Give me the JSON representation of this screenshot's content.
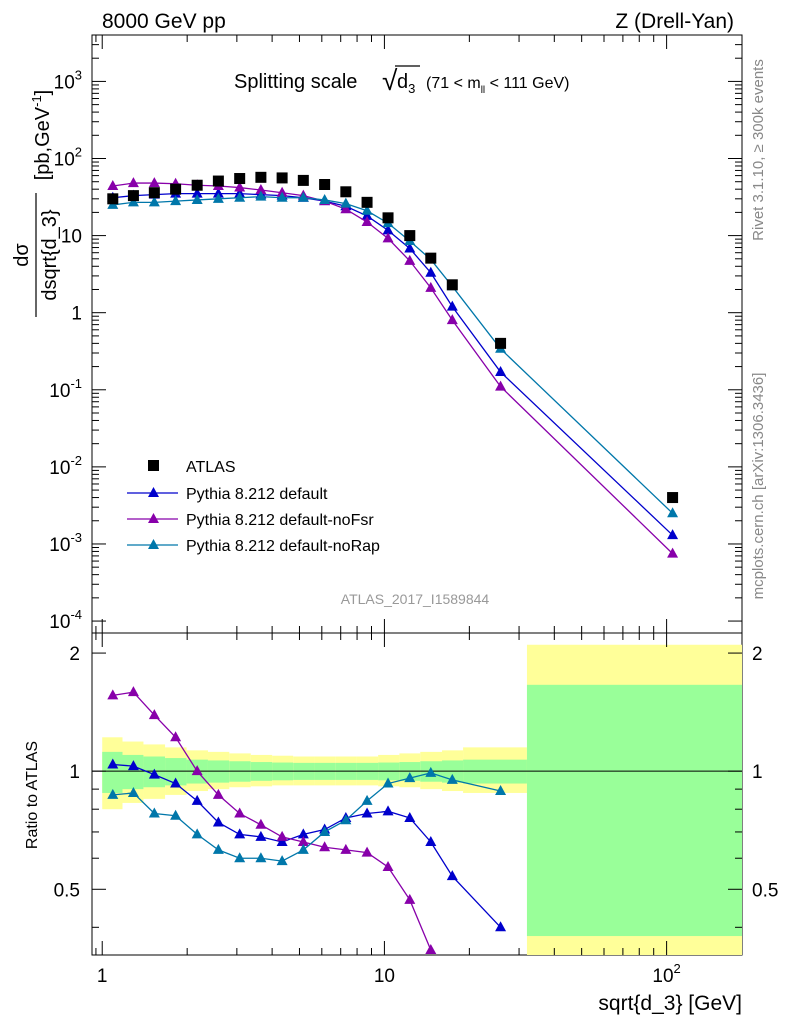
{
  "header": {
    "left": "8000 GeV pp",
    "right": "Z (Drell-Yan)"
  },
  "title": {
    "main": "Splitting scale",
    "sqrt_symbol": "√",
    "radicand": "d",
    "radicand_sub": "3",
    "cut": "(71 < m",
    "cut_sub": "ll",
    "cut_end": " < 111 GeV)"
  },
  "ylabel_top": {
    "numerator": "dσ",
    "denominator": "dsqrt{d_3}",
    "units": "[pb,GeV",
    "units_sup": "-1",
    "units_end": "]"
  },
  "ylabel_bottom": "Ratio to ATLAS",
  "xlabel": "sqrt{d_3} [GeV]",
  "analysis_tag": "ATLAS_2017_I1589844",
  "side_text_top": "Rivet 3.1.10, ≥ 300k events",
  "side_text_bottom": "mcplots.cern.ch [arXiv:1306.3436]",
  "chart_data": {
    "type": "line",
    "x_scale": "log",
    "y_scale_top": "log",
    "xlim": [
      0.92,
      185
    ],
    "ylim_top": [
      7e-05,
      4000
    ],
    "ylim_bottom": [
      0.34,
      2.25
    ],
    "x_ticks": [
      {
        "value": 1,
        "label": "1"
      },
      {
        "value": 10,
        "label": "10"
      },
      {
        "value": 100,
        "label": "10",
        "sup": "2"
      }
    ],
    "y_ticks_top": [
      {
        "value": 1000,
        "label": "10",
        "sup": "3"
      },
      {
        "value": 100,
        "label": "10",
        "sup": "2"
      },
      {
        "value": 10,
        "label": "10",
        "sup": ""
      },
      {
        "value": 1,
        "label": "1",
        "sup": ""
      },
      {
        "value": 0.1,
        "label": "10",
        "sup": "-1"
      },
      {
        "value": 0.01,
        "label": "10",
        "sup": "-2"
      },
      {
        "value": 0.001,
        "label": "10",
        "sup": "-3"
      },
      {
        "value": 0.0001,
        "label": "10",
        "sup": "-4"
      }
    ],
    "y_ticks_bottom": [
      {
        "value": 0.5,
        "label": "0.5"
      },
      {
        "value": 1,
        "label": "1"
      },
      {
        "value": 2,
        "label": "2"
      }
    ],
    "data": {
      "name": "ATLAS",
      "x": [
        1.09,
        1.29,
        1.53,
        1.82,
        2.17,
        2.58,
        3.07,
        3.65,
        4.34,
        5.16,
        6.14,
        7.3,
        8.68,
        10.3,
        12.3,
        14.6,
        17.4,
        25.8,
        105
      ],
      "y": [
        30,
        33,
        36,
        40,
        45,
        51,
        55,
        57,
        56,
        52,
        46,
        37,
        27,
        17,
        10,
        5.1,
        2.3,
        0.4,
        0.004
      ]
    },
    "series": [
      {
        "name": "Pythia 8.212 default",
        "color": "#0000cc",
        "x": [
          1.09,
          1.29,
          1.53,
          1.82,
          2.17,
          2.58,
          3.07,
          3.65,
          4.34,
          5.16,
          6.14,
          7.3,
          8.68,
          10.3,
          12.3,
          14.6,
          17.4,
          25.8,
          105
        ],
        "y": [
          31,
          33,
          34,
          35,
          35,
          35,
          35,
          34,
          33,
          31,
          28,
          24,
          18,
          11.7,
          6.8,
          3.3,
          1.2,
          0.17,
          0.0013
        ],
        "ratio": [
          1.04,
          1.03,
          0.98,
          0.93,
          0.84,
          0.74,
          0.69,
          0.68,
          0.66,
          0.69,
          0.71,
          0.76,
          0.78,
          0.79,
          0.76,
          0.66,
          0.54,
          0.4
        ]
      },
      {
        "name": "Pythia 8.212 default-noFsr",
        "color": "#8800aa",
        "x": [
          1.09,
          1.29,
          1.53,
          1.82,
          2.17,
          2.58,
          3.07,
          3.65,
          4.34,
          5.16,
          6.14,
          7.3,
          8.68,
          10.3,
          12.3,
          14.6,
          17.4,
          25.8,
          105
        ],
        "y": [
          44,
          48,
          48,
          47,
          45,
          44,
          42,
          39,
          36,
          33,
          28,
          22,
          15,
          9.2,
          4.7,
          2.1,
          0.8,
          0.11,
          0.00075
        ],
        "ratio": [
          1.56,
          1.59,
          1.39,
          1.22,
          1.0,
          0.87,
          0.78,
          0.73,
          0.68,
          0.66,
          0.64,
          0.63,
          0.62,
          0.57,
          0.47,
          0.35
        ]
      },
      {
        "name": "Pythia 8.212 default-noRap",
        "color": "#0077aa",
        "x": [
          1.09,
          1.29,
          1.53,
          1.82,
          2.17,
          2.58,
          3.07,
          3.65,
          4.34,
          5.16,
          6.14,
          7.3,
          8.68,
          10.3,
          12.3,
          14.6,
          17.4,
          25.8,
          105
        ],
        "y": [
          25,
          27,
          27,
          28,
          29,
          30,
          31,
          32,
          31,
          31,
          29,
          26,
          21,
          14.5,
          8.5,
          4.9,
          2.2,
          0.34,
          0.0025
        ],
        "ratio": [
          0.87,
          0.88,
          0.78,
          0.77,
          0.69,
          0.63,
          0.6,
          0.6,
          0.59,
          0.63,
          0.7,
          0.75,
          0.84,
          0.93,
          0.96,
          0.99,
          0.95,
          0.89
        ]
      }
    ],
    "ratio_band": {
      "x_edges": [
        1.0,
        1.18,
        1.4,
        1.67,
        1.99,
        2.37,
        2.82,
        3.36,
        4.0,
        4.75,
        5.65,
        6.72,
        7.99,
        9.5,
        11.3,
        13.4,
        16.0,
        19.0,
        32.0,
        185
      ],
      "stat_lo": [
        0.88,
        0.9,
        0.91,
        0.92,
        0.93,
        0.935,
        0.94,
        0.945,
        0.948,
        0.95,
        0.95,
        0.95,
        0.95,
        0.948,
        0.945,
        0.94,
        0.935,
        0.93,
        0.38
      ],
      "stat_hi": [
        1.12,
        1.1,
        1.09,
        1.08,
        1.07,
        1.065,
        1.06,
        1.055,
        1.052,
        1.05,
        1.05,
        1.05,
        1.05,
        1.052,
        1.055,
        1.06,
        1.065,
        1.07,
        1.66
      ],
      "total_lo": [
        0.8,
        0.83,
        0.85,
        0.87,
        0.89,
        0.9,
        0.91,
        0.915,
        0.92,
        0.92,
        0.92,
        0.92,
        0.92,
        0.915,
        0.91,
        0.9,
        0.89,
        0.88,
        0.34
      ],
      "total_hi": [
        1.22,
        1.19,
        1.17,
        1.15,
        1.13,
        1.12,
        1.11,
        1.1,
        1.095,
        1.09,
        1.09,
        1.09,
        1.09,
        1.1,
        1.11,
        1.12,
        1.13,
        1.15,
        2.1
      ]
    },
    "colors": {
      "band_stat": "#99ff99",
      "band_total": "#ffff99",
      "data_marker": "#000000"
    },
    "legend_position": "bottom-left"
  }
}
